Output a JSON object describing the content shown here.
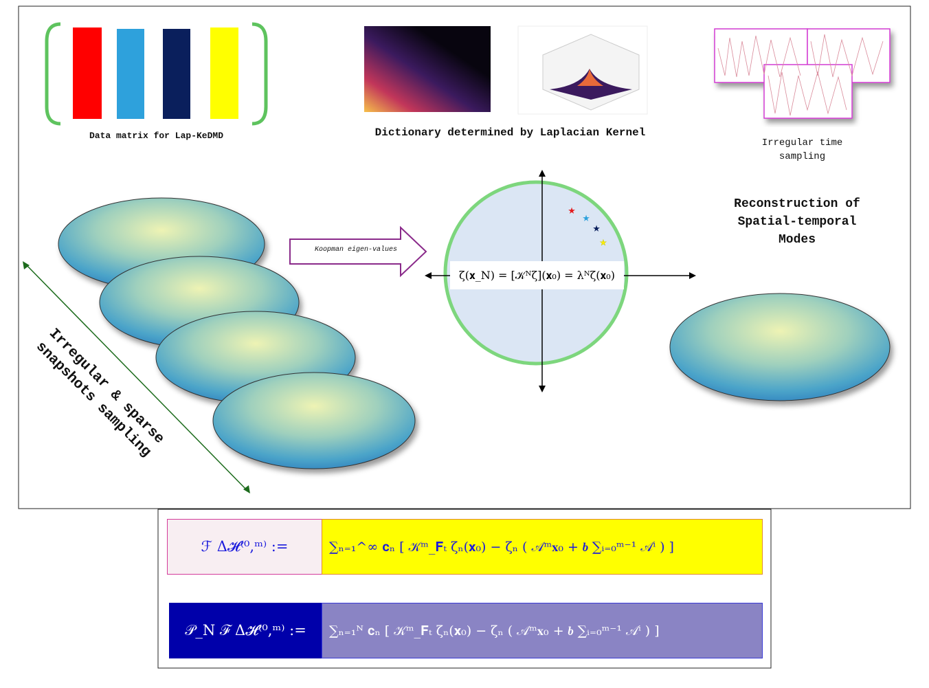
{
  "data_matrix": {
    "caption": "Data matrix for Lap-KeDMD"
  },
  "dictionary": {
    "caption": "Dictionary determined by Laplacian Kernel"
  },
  "sampling": {
    "caption": "Irregular time sampling"
  },
  "reconstruction": {
    "caption": "Reconstruction of Spatial-temporal Modes"
  },
  "koopman_arrow": {
    "label": "Koopman eigen-values"
  },
  "snapshots": {
    "caption": "Irregular & sparse snapshots sampling"
  },
  "eigen_equation": "ζ(𝐱_N) = [𝒦ᴺζ](𝐱₀) = λᴺζ(𝐱₀)",
  "formulas": [
    {
      "lhs": "ℱ Δ𝓗⁽⁰,ᵐ⁾ :=",
      "rhs": "∑ₙ₌₁^∞ 𝐜ₙ [ 𝒦ᵐ_𝐅ₜ ζₙ(𝐱₀) − ζₙ ( 𝒜ᵐ𝐱₀ + 𝒃 ∑ᵢ₌₀ᵐ⁻¹ 𝒜ⁱ ) ]"
    },
    {
      "lhs": "𝒫_N ℱ Δ𝓗⁽⁰,ᵐ⁾ :=",
      "rhs": "∑ₙ₌₁ᴺ 𝐜ₙ [ 𝒦ᵐ_𝐅ₜ ζₙ(𝐱₀) − ζₙ ( 𝒜ᵐ𝐱₀ + 𝒃 ∑ᵢ₌₀ᵐ⁻¹ 𝒜ⁱ ) ]"
    }
  ]
}
